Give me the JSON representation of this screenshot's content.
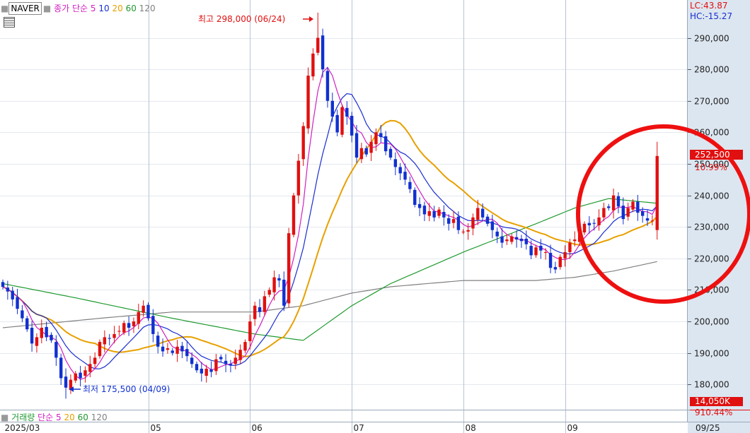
{
  "header": {
    "symbol": "NAVER",
    "price_ma_label": "종가 단순",
    "volume_label": "거래량",
    "volume_ma_label": "단순"
  },
  "indicators": {
    "lc": "LC:43.87",
    "hc": "HC:-15.27"
  },
  "annotations": {
    "high_label": "최고 298,000 (06/24)",
    "low_label": "최저 175,500 (04/09)"
  },
  "last": {
    "price_label": "252,500",
    "change_label": "10.99%",
    "volume_label": "14,050K",
    "volume_change_label": "910.44%"
  },
  "chart_data": {
    "type": "candlestick",
    "title": "NAVER",
    "ylim": [
      172000,
      302000
    ],
    "y_ticks": [
      180000,
      190000,
      200000,
      210000,
      220000,
      230000,
      240000,
      250000,
      260000,
      270000,
      280000,
      290000
    ],
    "y_tick_labels": [
      "180,000",
      "190,000",
      "200,000",
      "210,000",
      "220,000",
      "230,000",
      "240,000",
      "250,000",
      "260,000",
      "270,000",
      "280,000",
      "290,000"
    ],
    "x_labels": [
      {
        "label": "2025/03",
        "index": 0
      },
      {
        "label": "05",
        "index": 30
      },
      {
        "label": "06",
        "index": 51
      },
      {
        "label": "07",
        "index": 72
      },
      {
        "label": "08",
        "index": 95
      },
      {
        "label": "09",
        "index": 116
      },
      {
        "label": "09/25",
        "index": 135
      }
    ],
    "moving_averages": [
      {
        "period": 5,
        "color": "#d020c0"
      },
      {
        "period": 10,
        "color": "#1a2ed0"
      },
      {
        "period": 20,
        "color": "#e8a000"
      },
      {
        "period": 60,
        "color": "#209a30"
      },
      {
        "period": 120,
        "color": "#808080"
      }
    ],
    "volume_ma": [
      {
        "period": 5,
        "color": "#d020c0"
      },
      {
        "period": 20,
        "color": "#e8a000"
      },
      {
        "period": 60,
        "color": "#209a30"
      },
      {
        "period": 120,
        "color": "#808080"
      }
    ],
    "highest": {
      "value": 298000,
      "date": "06/24",
      "index": 65
    },
    "lowest": {
      "value": 175500,
      "date": "04/09",
      "index": 13
    },
    "last_close": 252500,
    "colors": {
      "up": "#e01010",
      "down": "#1030d0"
    },
    "ma_seed": {
      "ma60": [
        {
          "i": 0,
          "v": 212000
        },
        {
          "i": 15,
          "v": 207500
        },
        {
          "i": 35,
          "v": 201000
        },
        {
          "i": 52,
          "v": 196000
        },
        {
          "i": 62,
          "v": 194000
        },
        {
          "i": 72,
          "v": 205000
        },
        {
          "i": 80,
          "v": 212000
        },
        {
          "i": 95,
          "v": 222000
        },
        {
          "i": 110,
          "v": 231000
        },
        {
          "i": 118,
          "v": 236000
        },
        {
          "i": 125,
          "v": 239000
        },
        {
          "i": 135,
          "v": 237500
        }
      ],
      "ma120": [
        {
          "i": 0,
          "v": 198000
        },
        {
          "i": 20,
          "v": 201000
        },
        {
          "i": 35,
          "v": 203000
        },
        {
          "i": 52,
          "v": 203000
        },
        {
          "i": 62,
          "v": 205000
        },
        {
          "i": 72,
          "v": 209000
        },
        {
          "i": 80,
          "v": 211000
        },
        {
          "i": 95,
          "v": 213000
        },
        {
          "i": 110,
          "v": 213000
        },
        {
          "i": 118,
          "v": 214000
        },
        {
          "i": 126,
          "v": 216000
        },
        {
          "i": 135,
          "v": 219000
        }
      ]
    },
    "close": [
      211000,
      209500,
      207000,
      204000,
      201000,
      197500,
      193000,
      195000,
      198000,
      195000,
      194000,
      188500,
      182000,
      179000,
      181500,
      183500,
      182000,
      184500,
      186500,
      188500,
      193500,
      195000,
      194500,
      196000,
      197000,
      199500,
      198000,
      200000,
      203000,
      205000,
      201000,
      196000,
      192000,
      190500,
      191500,
      190000,
      192000,
      190500,
      189000,
      186500,
      184500,
      183500,
      185000,
      184000,
      188000,
      188000,
      186500,
      186000,
      188500,
      191000,
      193500,
      200000,
      205000,
      203000,
      208000,
      210000,
      214000,
      213000,
      205000,
      228000,
      240000,
      251000,
      262000,
      278000,
      285000,
      290000,
      280000,
      270000,
      265000,
      260000,
      268000,
      265000,
      259000,
      252000,
      255000,
      253000,
      257000,
      260000,
      258500,
      254000,
      252000,
      249000,
      247000,
      245000,
      242000,
      237000,
      236000,
      234000,
      235000,
      233000,
      235500,
      233000,
      231000,
      232500,
      229000,
      228500,
      229000,
      233000,
      236000,
      233000,
      231000,
      229000,
      227000,
      225000,
      226000,
      227000,
      226000,
      225500,
      224500,
      221000,
      223500,
      222500,
      222000,
      217000,
      216500,
      220500,
      222000,
      225000,
      226000,
      228500,
      231000,
      230500,
      231000,
      233000,
      236000,
      236000,
      240000,
      236500,
      232500,
      236000,
      238000,
      234500,
      233500,
      232000,
      232000,
      252500
    ]
  }
}
